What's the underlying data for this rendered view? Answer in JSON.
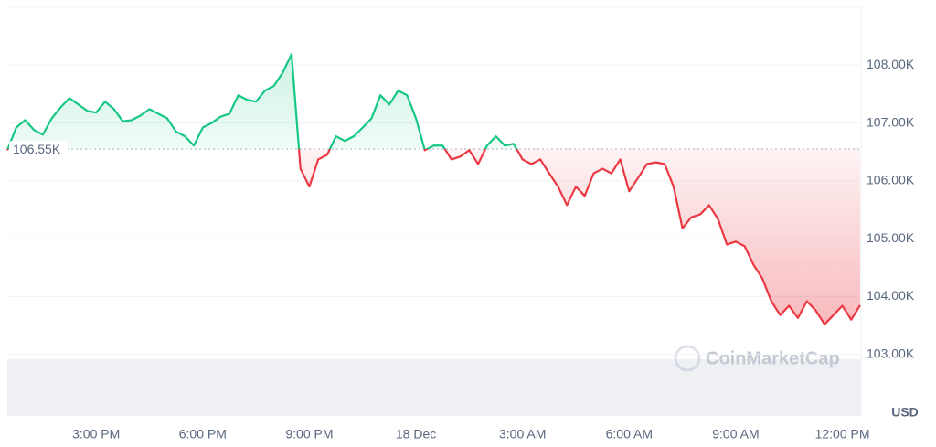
{
  "chart_data": {
    "type": "line",
    "categories": [
      null,
      null,
      null,
      null,
      null,
      null,
      null,
      null,
      null,
      null,
      "3:00 PM",
      null,
      null,
      null,
      null,
      null,
      null,
      null,
      null,
      null,
      null,
      null,
      "6:00 PM",
      null,
      null,
      null,
      null,
      null,
      null,
      null,
      null,
      null,
      null,
      null,
      "9:00 PM",
      null,
      null,
      null,
      null,
      null,
      null,
      null,
      null,
      null,
      null,
      null,
      "18 Dec",
      null,
      null,
      null,
      null,
      null,
      null,
      null,
      null,
      null,
      null,
      null,
      "3:00 AM",
      null,
      null,
      null,
      null,
      null,
      null,
      null,
      null,
      null,
      null,
      null,
      "6:00 AM",
      null,
      null,
      null,
      null,
      null,
      null,
      null,
      null,
      null,
      null,
      null,
      "9:00 AM",
      null,
      null,
      null,
      null,
      null,
      null,
      null,
      null,
      null,
      null,
      null,
      "12:00 PM",
      null,
      null
    ],
    "values": [
      106.53,
      106.92,
      107.05,
      106.88,
      106.8,
      107.08,
      107.27,
      107.43,
      107.32,
      107.21,
      107.18,
      107.37,
      107.24,
      107.03,
      107.05,
      107.13,
      107.24,
      107.16,
      107.08,
      106.85,
      106.77,
      106.61,
      106.92,
      107.0,
      107.11,
      107.16,
      107.48,
      107.4,
      107.37,
      107.56,
      107.64,
      107.87,
      108.19,
      106.21,
      105.9,
      106.37,
      106.45,
      106.77,
      106.69,
      106.77,
      106.92,
      107.08,
      107.48,
      107.32,
      107.56,
      107.48,
      107.08,
      106.53,
      106.61,
      106.61,
      106.37,
      106.42,
      106.53,
      106.29,
      106.61,
      106.77,
      106.61,
      106.64,
      106.37,
      106.29,
      106.37,
      106.13,
      105.9,
      105.58,
      105.9,
      105.74,
      106.13,
      106.21,
      106.13,
      106.37,
      105.82,
      106.05,
      106.29,
      106.32,
      106.29,
      105.9,
      105.18,
      105.37,
      105.42,
      105.58,
      105.34,
      104.9,
      104.95,
      104.87,
      104.55,
      104.31,
      103.92,
      103.68,
      103.84,
      103.63,
      103.92,
      103.76,
      103.52,
      103.68,
      103.84,
      103.6,
      103.85
    ],
    "color_up": "#16c784",
    "color_down": "#ea3943",
    "baseline": {
      "value": 106.55,
      "label": "106.55K"
    },
    "ylim": [
      102,
      109
    ],
    "yticks": [
      {
        "value": 103,
        "label": "103.00K"
      },
      {
        "value": 104,
        "label": "104.00K"
      },
      {
        "value": 105,
        "label": "105.00K"
      },
      {
        "value": 106,
        "label": "106.00K"
      },
      {
        "value": 107,
        "label": "107.00K"
      },
      {
        "value": 108,
        "label": "108.00K"
      }
    ],
    "y_label": "USD",
    "watermark": "CoinMarketCap",
    "grid": true
  }
}
